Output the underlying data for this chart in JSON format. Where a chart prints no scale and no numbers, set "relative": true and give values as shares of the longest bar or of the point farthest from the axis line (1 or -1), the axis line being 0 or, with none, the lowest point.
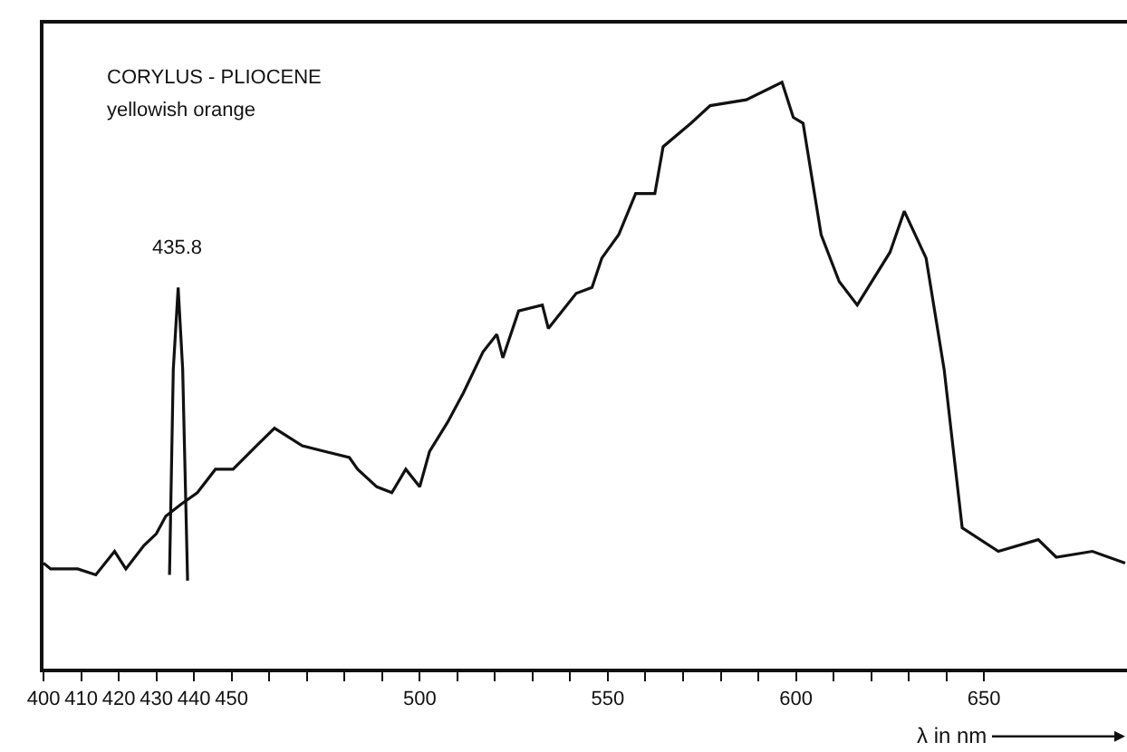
{
  "chart_data": {
    "type": "line",
    "relative": true,
    "title": "CORYLUS - PLIOCENE",
    "subtitle": "yellowish orange",
    "xlabel": "λ in nm",
    "xlim": [
      400,
      688
    ],
    "xticks": [
      400,
      410,
      420,
      430,
      440,
      450,
      {
        "value": 460,
        "label": null
      },
      {
        "value": 470,
        "label": null
      },
      {
        "value": 480,
        "label": null
      },
      {
        "value": 490,
        "label": null
      },
      500,
      {
        "value": 510,
        "label": null
      },
      {
        "value": 520,
        "label": null
      },
      {
        "value": 530,
        "label": null
      },
      {
        "value": 540,
        "label": null
      },
      550,
      {
        "value": 560,
        "label": null
      },
      {
        "value": 570,
        "label": null
      },
      {
        "value": 580,
        "label": null
      },
      {
        "value": 590,
        "label": null
      },
      600,
      {
        "value": 610,
        "label": null
      },
      {
        "value": 620,
        "label": null
      },
      {
        "value": 630,
        "label": null
      },
      {
        "value": 640,
        "label": null
      },
      650
    ],
    "marker": "none",
    "line_style": "solid",
    "annotations": [
      "435.8"
    ],
    "series": [
      {
        "color": "#111111",
        "x": [
          400,
          401.9,
          409.1,
          413.9,
          418.9,
          421.9,
          426.7,
          430,
          432.5,
          436.5,
          440.9,
          445.7,
          450.4,
          456.6,
          461.4,
          468.8,
          475,
          481.3,
          483.5,
          488.6,
          492.6,
          496.3,
          500,
          502.6,
          507.4,
          511.6,
          516.8,
          520.5,
          522.1,
          526.3,
          532.6,
          534.2,
          541.6,
          545.8,
          548.4,
          552.9,
          557.4,
          562.5,
          564.7,
          572.1,
          577.2,
          586.8,
          596.3,
          599.3,
          601.9,
          606.7,
          611.5,
          616.3,
          625,
          628.8,
          634.6,
          639.4,
          644.2,
          653.8,
          664.4,
          669.2,
          678.8,
          687.5
        ],
        "values": [
          0.18,
          0.17,
          0.17,
          0.16,
          0.2,
          0.17,
          0.21,
          0.23,
          0.26,
          0.28,
          0.3,
          0.34,
          0.34,
          0.38,
          0.41,
          0.38,
          0.37,
          0.36,
          0.34,
          0.31,
          0.3,
          0.34,
          0.31,
          0.37,
          0.42,
          0.47,
          0.54,
          0.57,
          0.53,
          0.61,
          0.62,
          0.58,
          0.64,
          0.65,
          0.7,
          0.74,
          0.81,
          0.81,
          0.89,
          0.93,
          0.96,
          0.97,
          1,
          0.94,
          0.93,
          0.74,
          0.66,
          0.62,
          0.71,
          0.78,
          0.7,
          0.51,
          0.24,
          0.2,
          0.22,
          0.19,
          0.2,
          0.18
        ]
      },
      {
        "color": "#111111",
        "x": [
          433.5,
          434.5,
          435.8,
          437,
          438.3
        ],
        "values": [
          0.16,
          0.51,
          0.65,
          0.51,
          0.15
        ]
      }
    ]
  }
}
